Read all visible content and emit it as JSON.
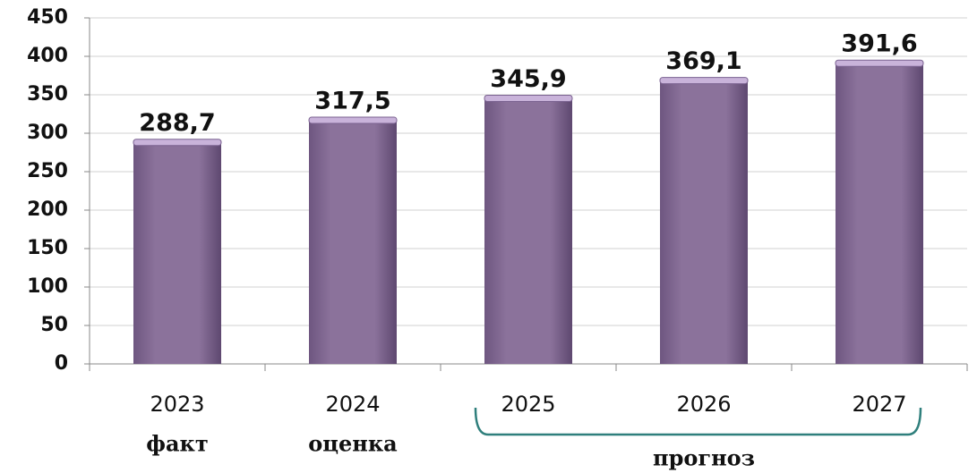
{
  "chart_data": {
    "type": "bar",
    "categories": [
      "2023",
      "2024",
      "2025",
      "2026",
      "2027"
    ],
    "values": [
      288.7,
      317.5,
      345.9,
      369.1,
      391.6
    ],
    "value_labels": [
      "288,7",
      "317,5",
      "345,9",
      "369,1",
      "391,6"
    ],
    "color": "#8a7099",
    "ylim": [
      0,
      450
    ],
    "yticks": [
      0,
      50,
      100,
      150,
      200,
      250,
      300,
      350,
      400,
      450
    ],
    "grid": true,
    "annotations": [
      "факт",
      "оценка",
      "прогноз"
    ]
  }
}
